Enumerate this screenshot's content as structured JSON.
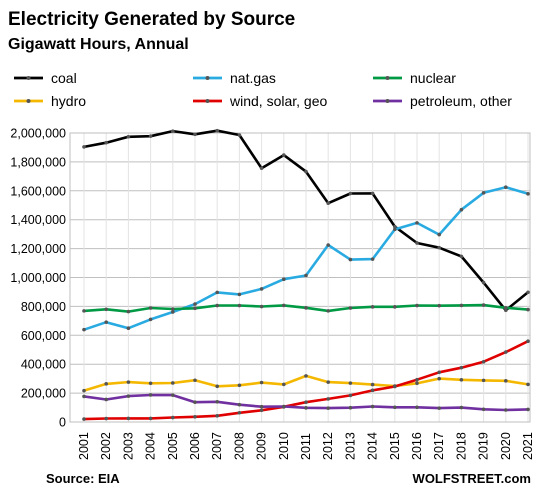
{
  "chart_data": {
    "type": "line",
    "title": "Electricity Generated by Source",
    "subtitle": "Gigawatt Hours, Annual",
    "source": "Source: EIA",
    "brand": "WOLFSTREET.com",
    "categories": [
      "2001",
      "2002",
      "2003",
      "2004",
      "2005",
      "2006",
      "2007",
      "2008",
      "2009",
      "2010",
      "2011",
      "2012",
      "2013",
      "2014",
      "2015",
      "2016",
      "2017",
      "2018",
      "2019",
      "2020",
      "2021"
    ],
    "ylim": [
      0,
      2000000
    ],
    "yticks": [
      "0",
      "200,000",
      "400,000",
      "600,000",
      "800,000",
      "1,000,000",
      "1,200,000",
      "1,400,000",
      "1,600,000",
      "1,800,000",
      "2,000,000"
    ],
    "grid": true,
    "legend_position": "top",
    "series": [
      {
        "name": "coal",
        "color": "#000000",
        "values": [
          1904000,
          1933000,
          1974000,
          1978000,
          2013000,
          1991000,
          2016000,
          1986000,
          1756000,
          1847000,
          1733000,
          1514000,
          1581000,
          1582000,
          1352000,
          1239000,
          1206000,
          1146000,
          965000,
          773000,
          898000
        ]
      },
      {
        "name": "nat.gas",
        "color": "#29abe2",
        "values": [
          639000,
          691000,
          649000,
          710000,
          761000,
          816000,
          897000,
          883000,
          921000,
          988000,
          1014000,
          1225000,
          1124000,
          1127000,
          1333000,
          1378000,
          1297000,
          1469000,
          1586000,
          1625000,
          1579000
        ]
      },
      {
        "name": "nuclear",
        "color": "#009944",
        "values": [
          769000,
          780000,
          764000,
          789000,
          782000,
          787000,
          806000,
          806000,
          799000,
          807000,
          790000,
          769000,
          789000,
          797000,
          797000,
          806000,
          805000,
          807000,
          809000,
          790000,
          778000
        ]
      },
      {
        "name": "hydro",
        "color": "#f5b800",
        "values": [
          217000,
          264000,
          276000,
          268000,
          270000,
          289000,
          247000,
          254000,
          273000,
          260000,
          319000,
          276000,
          269000,
          259000,
          249000,
          268000,
          300000,
          292000,
          288000,
          285000,
          260000
        ]
      },
      {
        "name": "wind, solar, geo",
        "color": "#e00000",
        "values": [
          20000,
          24000,
          25000,
          25000,
          31000,
          36000,
          43000,
          64000,
          81000,
          105000,
          137000,
          160000,
          184000,
          219000,
          246000,
          293000,
          344000,
          376000,
          417000,
          484000,
          559000
        ]
      },
      {
        "name": "petroleum, other",
        "color": "#7030a0",
        "values": [
          177000,
          156000,
          179000,
          187000,
          186000,
          137000,
          140000,
          120000,
          106000,
          107000,
          98000,
          96000,
          99000,
          107000,
          102000,
          102000,
          96000,
          100000,
          88000,
          83000,
          87000
        ]
      }
    ]
  }
}
